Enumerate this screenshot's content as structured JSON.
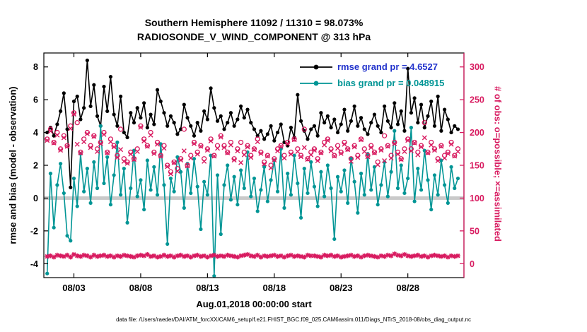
{
  "title": {
    "line1": "Southern Hemisphere 11092 / 11310 = 98.073%",
    "line2": "RADIOSONDE_V_WIND_COMPONENT @ 313 hPa"
  },
  "axes": {
    "left_label": "rmse and bias (model - observation)",
    "right_label": "# of obs: o=possible; ×=assimilated",
    "x_label": "Aug.01,2018 00:00:00 start",
    "left_ticks": [
      8,
      6,
      4,
      2,
      0,
      -2,
      -4
    ],
    "right_ticks": [
      300,
      250,
      200,
      150,
      100,
      50,
      0
    ],
    "x_tick_labels": [
      "08/03",
      "08/08",
      "08/13",
      "08/18",
      "08/23",
      "08/28"
    ],
    "x_tick_days": [
      2,
      7,
      12,
      17,
      22,
      27
    ]
  },
  "legend": [
    {
      "label": "rmse grand pr = 4.6527",
      "line_color": "#000000",
      "text_color": "#2233cc"
    },
    {
      "label": "bias grand pr = 0.048915",
      "line_color": "#009595",
      "text_color": "#009595"
    }
  ],
  "footer": "data file: /Users/raeder/DAI/ATM_forcXX/CAM6_setup/f.e21.FHIST_BGC.f09_025.CAM6assim.011/Diags_NTrS_2018-08/obs_diag_output.nc",
  "colors": {
    "rmse": "#000000",
    "bias": "#009595",
    "obs": "#d81b60",
    "zero_band": "#c9c9c9",
    "axis": "#000000"
  },
  "chart_data": {
    "type": "line",
    "x_start_day": 0,
    "x_step_days": 0.25,
    "x_axis_note": "quarter-day observation times from Aug.01,2018 00:00:00 through Aug.31,2018",
    "ylim_left": [
      -4.85,
      8.85
    ],
    "ylim_right": [
      -21.25,
      321.25
    ],
    "series": [
      {
        "name": "rmse",
        "axis": "left",
        "marker": "dot",
        "line": true,
        "color": "#000000",
        "values": [
          4.0,
          4.3,
          3.8,
          4.5,
          5.3,
          6.4,
          4.2,
          0.65,
          5.9,
          6.2,
          4.8,
          5.5,
          8.4,
          5.6,
          6.9,
          5.0,
          4.4,
          6.8,
          5.3,
          7.4,
          5.1,
          4.4,
          6.2,
          4.0,
          3.7,
          5.2,
          4.6,
          5.5,
          4.9,
          5.8,
          4.3,
          5.1,
          4.5,
          6.6,
          5.9,
          5.2,
          4.4,
          5.0,
          4.6,
          3.9,
          4.2,
          5.7,
          4.9,
          4.4,
          3.8,
          4.6,
          4.1,
          5.3,
          4.8,
          6.7,
          5.5,
          4.7,
          5.0,
          4.2,
          4.6,
          5.2,
          4.4,
          4.8,
          5.6,
          4.9,
          5.4,
          4.6,
          4.2,
          3.8,
          4.1,
          3.6,
          3.9,
          4.4,
          3.5,
          4.0,
          4.5,
          3.4,
          3.2,
          4.3,
          3.7,
          6.3,
          4.7,
          4.1,
          3.6,
          4.2,
          4.4,
          3.8,
          5.2,
          4.6,
          5.0,
          4.3,
          4.8,
          4.0,
          4.5,
          5.4,
          4.1,
          4.7,
          5.6,
          4.4,
          4.9,
          4.2,
          3.9,
          4.6,
          5.1,
          4.4,
          4.0,
          5.6,
          4.7,
          4.3,
          5.8,
          4.5,
          5.3,
          4.1,
          7.9,
          5.2,
          6.1,
          4.6,
          5.7,
          4.3,
          5.0,
          5.9,
          4.4,
          6.2,
          4.1,
          5.4,
          4.8,
          4.0,
          4.4,
          4.2
        ]
      },
      {
        "name": "bias",
        "axis": "left",
        "marker": "dot",
        "line": true,
        "color": "#009595",
        "values": [
          -4.6,
          1.5,
          -1.8,
          0.8,
          2.1,
          0.3,
          -2.3,
          -2.6,
          1.2,
          -0.5,
          2.7,
          0.4,
          1.8,
          -0.3,
          2.2,
          0.6,
          4.4,
          0.9,
          2.5,
          -0.4,
          1.4,
          3.4,
          0.2,
          1.8,
          -1.5,
          0.6,
          2.9,
          0.1,
          1.1,
          -0.7,
          2.3,
          0.5,
          1.9,
          0.2,
          3.3,
          0.8,
          -2.8,
          1.2,
          0.4,
          2.5,
          1.6,
          -0.6,
          2.1,
          0.3,
          2.4,
          0.7,
          -1.9,
          1.0,
          0.2,
          2.6,
          -4.75,
          1.4,
          -2.2,
          0.8,
          2.0,
          -0.1,
          1.3,
          -0.4,
          1.7,
          0.6,
          2.8,
          0.1,
          1.2,
          -0.8,
          0.5,
          1.9,
          -0.2,
          1.1,
          2.3,
          0.4,
          3.0,
          -0.6,
          1.5,
          0.2,
          2.6,
          0.9,
          -1.2,
          1.8,
          0.3,
          2.2,
          0.7,
          -0.5,
          1.6,
          0.1,
          2.0,
          0.6,
          -2.5,
          1.3,
          0.4,
          1.7,
          -0.3,
          2.4,
          1.0,
          -0.9,
          1.5,
          0.2,
          2.7,
          0.5,
          1.9,
          -0.4,
          0.8,
          2.2,
          0.1,
          1.6,
          4.1,
          0.6,
          2.0,
          0.3,
          1.2,
          4.3,
          -0.2,
          1.8,
          0.5,
          2.9,
          1.1,
          -0.7,
          1.4,
          0.2,
          2.3,
          0.8,
          -0.3,
          1.9,
          0.6,
          1.2
        ]
      },
      {
        "name": "possible",
        "axis": "right",
        "marker": "open-circle",
        "line": false,
        "color": "#d81b60",
        "values": [
          190,
          205,
          185,
          200,
          175,
          195,
          180,
          210,
          230,
          215,
          170,
          190,
          200,
          180,
          195,
          175,
          185,
          200,
          170,
          190,
          180,
          165,
          205,
          160,
          155,
          170,
          160,
          175,
          210,
          190,
          180,
          200,
          170,
          185,
          165,
          180,
          150,
          140,
          155,
          145,
          160,
          205,
          150,
          165,
          185,
          170,
          180,
          160,
          175,
          190,
          165,
          180,
          195,
          180,
          170,
          185,
          160,
          175,
          185,
          170,
          180,
          165,
          175,
          190,
          170,
          155,
          165,
          150,
          160,
          175,
          180,
          165,
          185,
          170,
          190,
          175,
          165,
          205,
          160,
          170,
          175,
          160,
          170,
          185,
          190,
          175,
          165,
          180,
          170,
          185,
          175,
          160,
          180,
          165,
          190,
          175,
          165,
          180,
          170,
          155,
          175,
          195,
          180,
          165,
          185,
          170,
          160,
          175,
          190,
          175,
          185,
          170,
          180,
          215,
          170,
          185,
          175,
          160,
          180,
          165,
          170,
          185,
          165,
          175
        ]
      },
      {
        "name": "assimilated",
        "axis": "right",
        "marker": "x",
        "line": false,
        "color": "#d81b60",
        "values": [
          188,
          202,
          184,
          196,
          173,
          192,
          179,
          206,
          228,
          182,
          169,
          186,
          198,
          177,
          194,
          171,
          183,
          197,
          169,
          186,
          178,
          162,
          174,
          156,
          153,
          167,
          159,
          171,
          208,
          187,
          179,
          196,
          168,
          182,
          164,
          176,
          148,
          137,
          154,
          141,
          158,
          172,
          149,
          161,
          183,
          167,
          179,
          156,
          173,
          187,
          164,
          176,
          193,
          177,
          169,
          181,
          158,
          172,
          154,
          166,
          178,
          162,
          174,
          186,
          168,
          152,
          164,
          146,
          158,
          172,
          179,
          161,
          183,
          167,
          189,
          171,
          163,
          177,
          159,
          166,
          173,
          157,
          169,
          181,
          188,
          172,
          164,
          176,
          168,
          182,
          174,
          156,
          178,
          162,
          189,
          171,
          163,
          177,
          169,
          151,
          173,
          157,
          179,
          161,
          183,
          167,
          159,
          171,
          188,
          172,
          184,
          166,
          178,
          192,
          169,
          181,
          173,
          157,
          179,
          161,
          168,
          182,
          164,
          171
        ]
      },
      {
        "name": "rejected",
        "axis": "right",
        "marker": "asterisk",
        "line": false,
        "color": "#d81b60",
        "values": [
          11,
          12,
          10,
          13,
          12,
          11,
          13,
          10,
          14,
          12,
          11,
          13,
          12,
          10,
          13,
          11,
          12,
          13,
          11,
          12,
          10,
          12,
          11,
          13,
          12,
          11,
          10,
          12,
          13,
          12,
          14,
          11,
          12,
          10,
          11,
          13,
          11,
          12,
          10,
          12,
          13,
          11,
          12,
          10,
          12,
          13,
          11,
          12,
          10,
          12,
          13,
          11,
          12,
          11,
          13,
          12,
          11,
          10,
          12,
          13,
          14,
          12,
          11,
          13,
          10,
          12,
          11,
          12,
          13,
          11,
          12,
          10,
          12,
          13,
          11,
          12,
          11,
          10,
          13,
          12,
          12,
          11,
          10,
          13,
          12,
          13,
          11,
          12,
          10,
          11,
          12,
          13,
          11,
          12,
          10,
          12,
          13,
          12,
          11,
          10,
          12,
          11,
          13,
          12,
          15,
          13,
          12,
          14,
          12,
          11,
          12,
          13,
          11,
          12,
          10,
          12,
          13,
          12,
          11,
          12,
          10,
          12,
          11,
          12
        ]
      }
    ]
  }
}
